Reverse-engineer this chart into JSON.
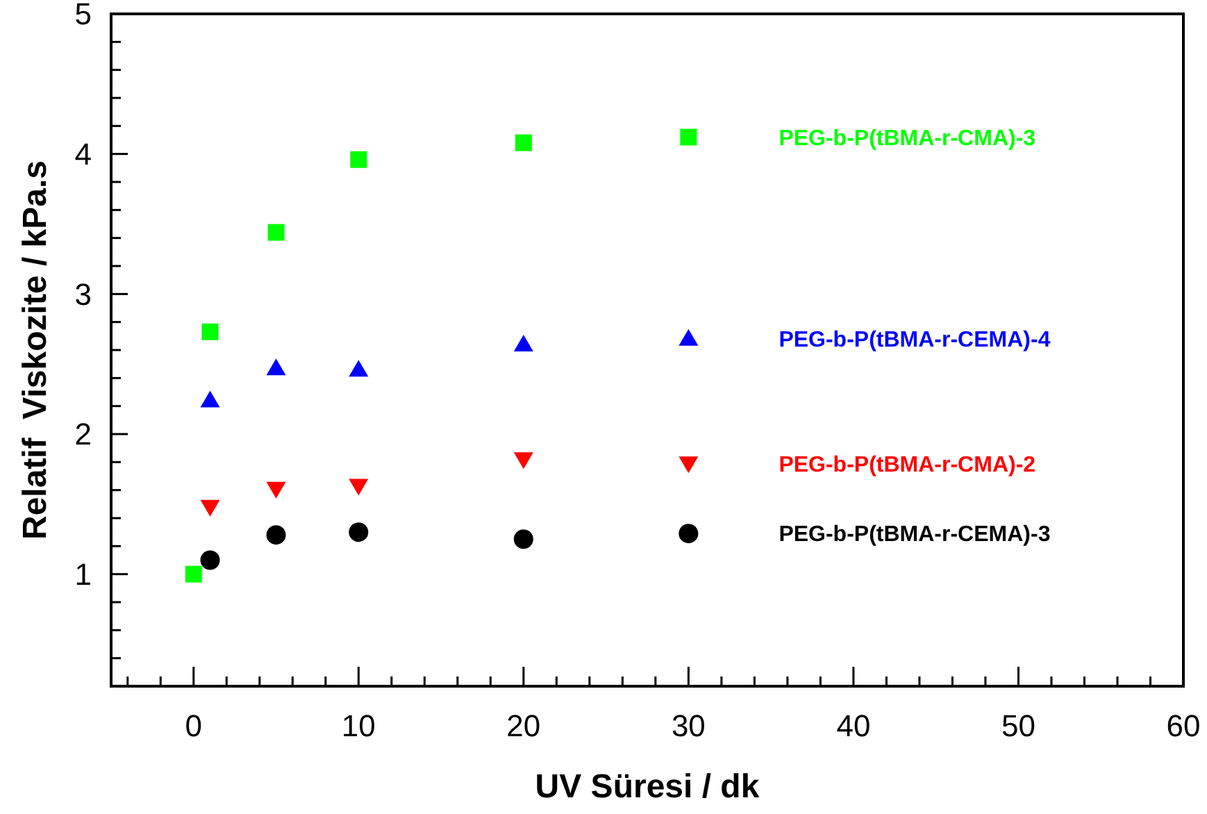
{
  "chart_data": {
    "type": "scatter",
    "xlabel": "UV Süresi / dk",
    "ylabel": "Relatif  Viskozite / kPa.s",
    "x": [
      0,
      1,
      5,
      10,
      20,
      30
    ],
    "series": [
      {
        "name": "PEG-b-P(tBMA-r-CEMA)-3",
        "color": "#000000",
        "marker": "circle",
        "values": [
          null,
          1.1,
          1.28,
          1.3,
          1.25,
          1.29
        ]
      },
      {
        "name": "PEG-b-P(tBMA-r-CMA)-2",
        "color": "#ff0000",
        "marker": "triangle-down",
        "values": [
          null,
          1.48,
          1.61,
          1.63,
          1.82,
          1.79
        ]
      },
      {
        "name": "PEG-b-P(tBMA-r-CEMA)-4",
        "color": "#0000ff",
        "marker": "triangle",
        "values": [
          null,
          2.24,
          2.47,
          2.46,
          2.64,
          2.68
        ]
      },
      {
        "name": "PEG-b-P(tBMA-r-CMA)-3",
        "color": "#00ff00",
        "marker": "square",
        "values": [
          1.0,
          2.73,
          3.44,
          3.96,
          4.08,
          4.12
        ]
      }
    ],
    "xlim": [
      -5,
      60
    ],
    "ylim": [
      0.2,
      5
    ],
    "xticks": [
      {
        "value": -4,
        "label": null
      },
      {
        "value": -2,
        "label": null
      },
      0,
      {
        "value": 2,
        "label": null
      },
      {
        "value": 4,
        "label": null
      },
      {
        "value": 6,
        "label": null
      },
      {
        "value": 8,
        "label": null
      },
      10,
      {
        "value": 12,
        "label": null
      },
      {
        "value": 14,
        "label": null
      },
      {
        "value": 16,
        "label": null
      },
      {
        "value": 18,
        "label": null
      },
      20,
      {
        "value": 22,
        "label": null
      },
      {
        "value": 24,
        "label": null
      },
      {
        "value": 26,
        "label": null
      },
      {
        "value": 28,
        "label": null
      },
      30,
      {
        "value": 32,
        "label": null
      },
      {
        "value": 34,
        "label": null
      },
      {
        "value": 36,
        "label": null
      },
      {
        "value": 38,
        "label": null
      },
      40,
      {
        "value": 42,
        "label": null
      },
      {
        "value": 44,
        "label": null
      },
      {
        "value": 46,
        "label": null
      },
      {
        "value": 48,
        "label": null
      },
      50,
      {
        "value": 52,
        "label": null
      },
      {
        "value": 54,
        "label": null
      },
      {
        "value": 56,
        "label": null
      },
      {
        "value": 58,
        "label": null
      },
      60
    ],
    "yticks": [
      {
        "value": 0.2,
        "label": null
      },
      {
        "value": 0.4,
        "label": null
      },
      {
        "value": 0.6,
        "label": null
      },
      {
        "value": 0.8,
        "label": null
      },
      1,
      {
        "value": 1.2,
        "label": null
      },
      {
        "value": 1.4,
        "label": null
      },
      {
        "value": 1.6,
        "label": null
      },
      {
        "value": 1.8,
        "label": null
      },
      2,
      {
        "value": 2.2,
        "label": null
      },
      {
        "value": 2.4,
        "label": null
      },
      {
        "value": 2.6,
        "label": null
      },
      {
        "value": 2.8,
        "label": null
      },
      3,
      {
        "value": 3.2,
        "label": null
      },
      {
        "value": 3.4,
        "label": null
      },
      {
        "value": 3.6,
        "label": null
      },
      {
        "value": 3.8,
        "label": null
      },
      4,
      {
        "value": 4.2,
        "label": null
      },
      {
        "value": 4.4,
        "label": null
      },
      {
        "value": 4.6,
        "label": null
      },
      {
        "value": 4.8,
        "label": null
      },
      5
    ],
    "grid": false
  }
}
